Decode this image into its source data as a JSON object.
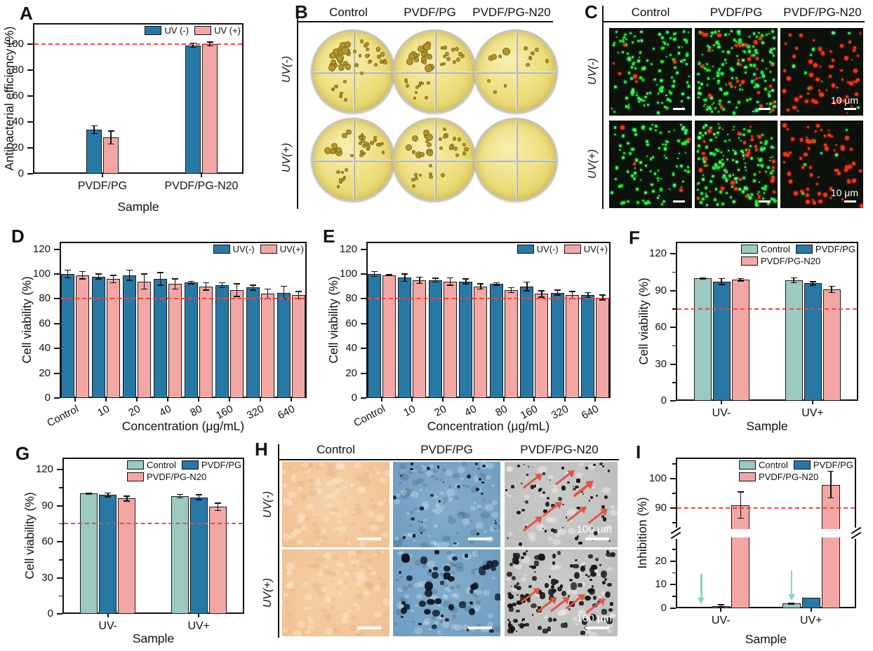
{
  "colors": {
    "blue": "#2878a6",
    "pink": "#f3a7a4",
    "teal": "#9ccac2",
    "ref_red": "#f2453d",
    "arrow_teal": "#8fd0c7"
  },
  "panels": {
    "A": {
      "label": "A"
    },
    "B": {
      "label": "B",
      "columns": [
        "Control",
        "PVDF/PG",
        "PVDF/PG-N20"
      ],
      "rows": [
        {
          "label": "UV(-)",
          "dishes": [
            {
              "colonies": 46
            },
            {
              "colonies": 42
            },
            {
              "colonies": 14
            }
          ]
        },
        {
          "label": "UV(+)",
          "dishes": [
            {
              "colonies": 40
            },
            {
              "colonies": 36
            },
            {
              "colonies": 0
            }
          ]
        }
      ]
    },
    "C": {
      "label": "C",
      "columns": [
        "Control",
        "PVDF/PG",
        "PVDF/PG-N20"
      ],
      "rows": [
        {
          "label": "UV(-)",
          "images": [
            {
              "green": 130,
              "red": 6,
              "scale": ""
            },
            {
              "green": 170,
              "red": 30,
              "scale": ""
            },
            {
              "green": 12,
              "red": 60,
              "scale": "10 μm"
            }
          ]
        },
        {
          "label": "UV(+)",
          "images": [
            {
              "green": 100,
              "red": 5,
              "scale": ""
            },
            {
              "green": 160,
              "red": 35,
              "scale": ""
            },
            {
              "green": 6,
              "red": 62,
              "scale": "10 μm"
            }
          ]
        }
      ]
    },
    "D": {
      "label": "D"
    },
    "E": {
      "label": "E"
    },
    "F": {
      "label": "F"
    },
    "G": {
      "label": "G"
    },
    "H": {
      "label": "H",
      "columns": [
        "Control",
        "PVDF/PG",
        "PVDF/PG-N20"
      ],
      "rows": [
        {
          "label": "UV(-)",
          "images": [
            {
              "tint": "peach",
              "specks": 0,
              "speck_scale": 1,
              "arrows": 0,
              "scale": ""
            },
            {
              "tint": "blue",
              "specks": 30,
              "speck_scale": 1,
              "arrows": 0,
              "scale": ""
            },
            {
              "tint": "gray",
              "specks": 70,
              "speck_scale": 1,
              "arrows": 8,
              "scale": "100 μm"
            }
          ]
        },
        {
          "label": "UV(+)",
          "images": [
            {
              "tint": "peach",
              "specks": 0,
              "speck_scale": 1,
              "arrows": 0,
              "scale": ""
            },
            {
              "tint": "blue",
              "specks": 45,
              "speck_scale": 2,
              "arrows": 0,
              "scale": ""
            },
            {
              "tint": "gray",
              "specks": 130,
              "speck_scale": 1.6,
              "arrows": 5,
              "scale": "100 μm"
            }
          ]
        }
      ]
    },
    "I": {
      "label": "I"
    }
  },
  "chart_data": [
    {
      "panel": "A",
      "type": "bar",
      "categories": [
        "PVDF/PG",
        "PVDF/PG-N20"
      ],
      "centers": [
        0.33,
        0.8
      ],
      "series": [
        {
          "name": "UV (-)",
          "color": "blue",
          "values": [
            34,
            99
          ],
          "errors": [
            3,
            1.5
          ]
        },
        {
          "name": "UV (+)",
          "color": "pink",
          "values": [
            28,
            100
          ],
          "errors": [
            5,
            1.5
          ]
        }
      ],
      "ylabel": "Antibacterial efficiency (%)",
      "xlabel": "Sample",
      "ylim": [
        0,
        116
      ],
      "yticks": [
        0,
        20,
        40,
        60,
        80,
        100
      ],
      "yticks_minor": [],
      "ref_line": 100,
      "legend_rows": [
        [
          0,
          1
        ]
      ],
      "legend_pos": "top-right",
      "grid": false
    },
    {
      "panel": "D",
      "type": "bar",
      "categories": [
        "Control",
        "10",
        "20",
        "40",
        "80",
        "160",
        "320",
        "640"
      ],
      "series": [
        {
          "name": "UV(-)",
          "color": "blue",
          "values": [
            100,
            98,
            99,
            96,
            93,
            91,
            89,
            85
          ],
          "errors": [
            3,
            2,
            4,
            5,
            1,
            2,
            2,
            5
          ]
        },
        {
          "name": "UV(+)",
          "color": "pink",
          "values": [
            99,
            96,
            94,
            92,
            90,
            87,
            84,
            83
          ],
          "errors": [
            3,
            3,
            6,
            4,
            3,
            5,
            4,
            3
          ]
        }
      ],
      "ylabel": "Cell viability (%)",
      "xlabel": "Concentration (μg/mL)",
      "ylim": [
        0,
        126
      ],
      "yticks": [
        0,
        20,
        40,
        60,
        80,
        100,
        120
      ],
      "yticks_minor": [],
      "ref_line": 80,
      "legend_rows": [
        [
          0,
          1
        ]
      ],
      "legend_pos": "top-right",
      "grid": false
    },
    {
      "panel": "E",
      "type": "bar",
      "categories": [
        "Control",
        "10",
        "20",
        "40",
        "80",
        "160",
        "320",
        "640"
      ],
      "series": [
        {
          "name": "UV(-)",
          "color": "blue",
          "values": [
            100,
            97,
            95,
            94,
            92,
            90,
            85,
            83
          ],
          "errors": [
            2,
            3,
            1.5,
            2,
            1,
            3.5,
            2,
            2
          ]
        },
        {
          "name": "UV(+)",
          "color": "pink",
          "values": [
            99,
            95,
            94,
            90,
            87,
            84,
            83,
            81
          ],
          "errors": [
            0.5,
            2.5,
            3,
            2,
            2,
            2.5,
            3,
            2
          ]
        }
      ],
      "ylabel": "Cell viability (%)",
      "xlabel": "Concentration (μg/mL)",
      "ylim": [
        0,
        126
      ],
      "yticks": [
        0,
        20,
        40,
        60,
        80,
        100,
        120
      ],
      "yticks_minor": [],
      "ref_line": 80,
      "legend_rows": [
        [
          0,
          1
        ]
      ],
      "legend_pos": "top-right",
      "grid": false
    },
    {
      "panel": "F",
      "type": "bar",
      "categories": [
        "UV-",
        "UV+"
      ],
      "series": [
        {
          "name": "Control",
          "color": "teal",
          "values": [
            100,
            98.5
          ],
          "errors": [
            0.5,
            2
          ]
        },
        {
          "name": "PVDF/PG",
          "color": "blue",
          "values": [
            97.5,
            96
          ],
          "errors": [
            2.5,
            1.5
          ]
        },
        {
          "name": "PVDF/PG-N20",
          "color": "pink",
          "values": [
            99,
            91
          ],
          "errors": [
            1,
            2.5
          ]
        }
      ],
      "ylabel": "Cell viability (%)",
      "xlabel": "Sample",
      "ylim": [
        0,
        130
      ],
      "yticks": [
        0,
        30,
        60,
        90,
        120
      ],
      "yticks_minor": [
        15,
        45,
        75,
        105
      ],
      "ref_line": 75,
      "legend_rows": [
        [
          0,
          1
        ],
        [
          2
        ]
      ],
      "legend_pos": "top-right",
      "grid": false
    },
    {
      "panel": "G",
      "type": "bar",
      "categories": [
        "UV-",
        "UV+"
      ],
      "series": [
        {
          "name": "Control",
          "color": "teal",
          "values": [
            100,
            98
          ],
          "errors": [
            0.5,
            1.5
          ]
        },
        {
          "name": "PVDF/PG",
          "color": "blue",
          "values": [
            99,
            97
          ],
          "errors": [
            1.5,
            2
          ]
        },
        {
          "name": "PVDF/PG-N20",
          "color": "pink",
          "values": [
            96,
            89
          ],
          "errors": [
            2,
            3
          ]
        }
      ],
      "ylabel": "Cell viability (%)",
      "xlabel": "Sample",
      "ylim": [
        0,
        130
      ],
      "yticks": [
        0,
        30,
        60,
        90,
        120
      ],
      "yticks_minor": [
        15,
        45,
        75,
        105
      ],
      "ref_line": 75,
      "legend_rows": [
        [
          0,
          1
        ],
        [
          2
        ]
      ],
      "legend_pos": "top-right",
      "grid": false
    },
    {
      "panel": "I",
      "type": "bar",
      "categories": [
        "UV-",
        "UV+"
      ],
      "series": [
        {
          "name": "Control",
          "color": "teal",
          "values": [
            0.2,
            2
          ],
          "errors": [
            0,
            0.3
          ]
        },
        {
          "name": "PVDF/PG",
          "color": "blue",
          "values": [
            1,
            4.5
          ],
          "errors": [
            0.5,
            0
          ]
        },
        {
          "name": "PVDF/PG-N20",
          "color": "pink",
          "values": [
            91,
            98
          ],
          "errors": [
            4.5,
            4.5
          ]
        }
      ],
      "ylabel": "Inhibition (%)",
      "xlabel": "Sample",
      "axis_break": {
        "lower_max": 30,
        "lower_frac": 0.47,
        "gap_frac": 0.055,
        "upper_min": 82.8,
        "upper_max": 107.2
      },
      "yticks_lower": [
        0,
        10,
        20
      ],
      "yticks_lower_minor": [
        5,
        15,
        25
      ],
      "yticks_upper": [
        90,
        100
      ],
      "yticks_upper_minor": [
        85,
        95,
        105
      ],
      "ref_line": 90,
      "legend_rows": [
        [
          0,
          1
        ],
        [
          2
        ]
      ],
      "legend_pos": "top-right",
      "grid": false,
      "arrows": [
        {
          "cat": 0,
          "series": 0,
          "tip": 1.5
        },
        {
          "cat": 1,
          "series": 0,
          "tip": 3
        }
      ]
    }
  ]
}
